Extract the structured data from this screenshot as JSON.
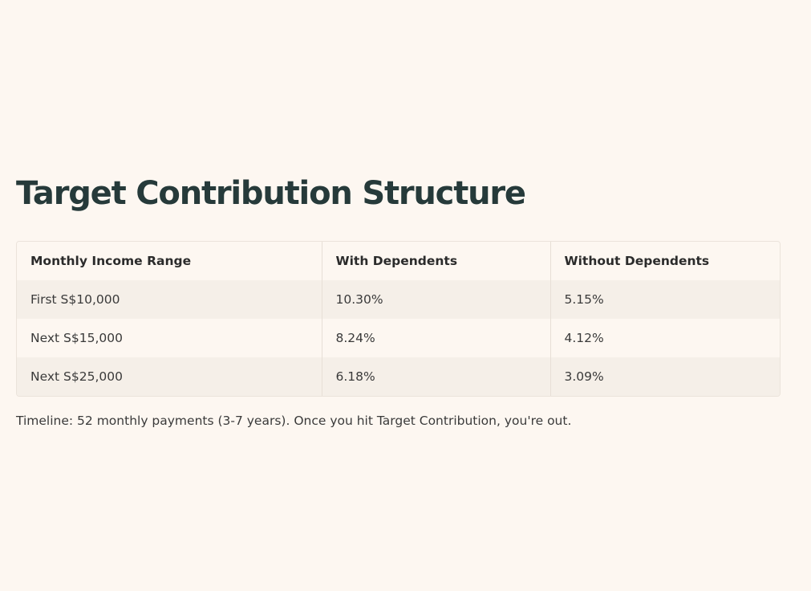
{
  "title": "Target Contribution Structure",
  "table": {
    "headers": [
      "Monthly Income Range",
      "With Dependents",
      "Without Dependents"
    ],
    "rows": [
      [
        "First S$10,000",
        "10.30%",
        "5.15%"
      ],
      [
        "Next S$15,000",
        "8.24%",
        "4.12%"
      ],
      [
        "Next S$25,000",
        "6.18%",
        "3.09%"
      ]
    ]
  },
  "note": "Timeline: 52 monthly payments (3-7 years). Once you hit Target Contribution, you're out."
}
